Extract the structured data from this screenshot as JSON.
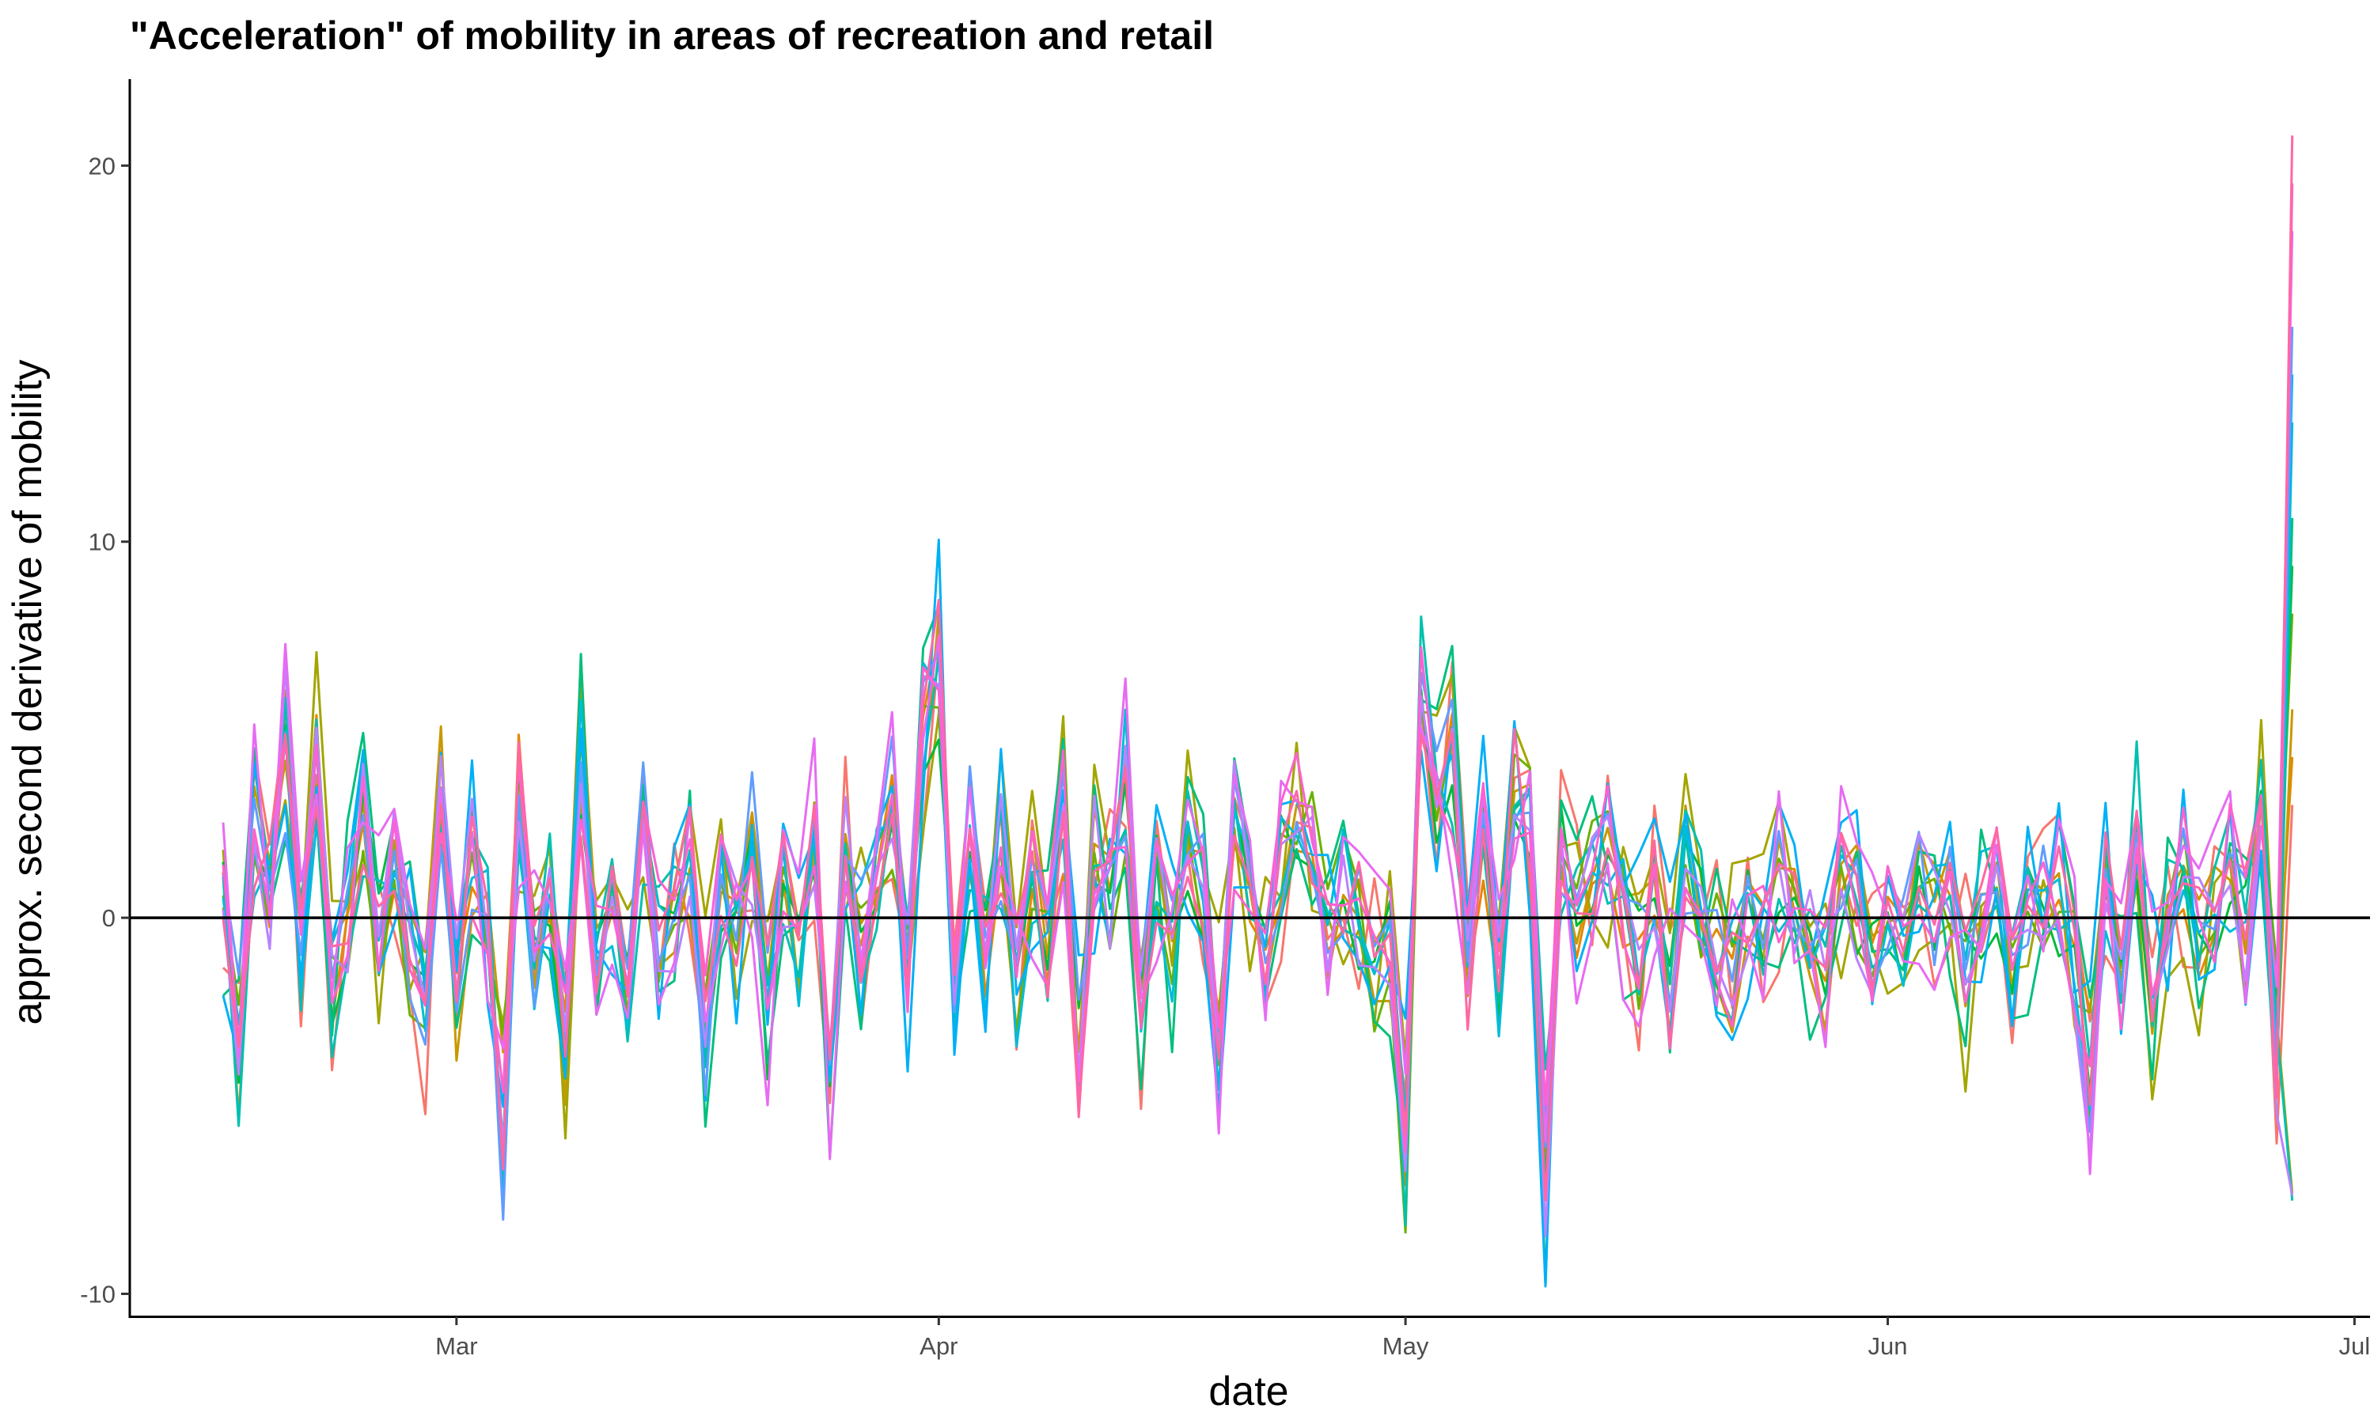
{
  "chart_data": {
    "type": "line",
    "title": "\"Acceleration\" of mobility in areas of recreation and retail",
    "xlabel": "date",
    "ylabel": "approx. second derivative of mobility",
    "x_start": "2020-02-15",
    "x_end": "2020-06-27",
    "xlim": [
      "2020-02-09",
      "2020-07-02"
    ],
    "ylim": [
      -10.6,
      22.3
    ],
    "x_ticks": [
      {
        "date": "2020-03-01",
        "label": "Mar"
      },
      {
        "date": "2020-04-01",
        "label": "Apr"
      },
      {
        "date": "2020-05-01",
        "label": "May"
      },
      {
        "date": "2020-06-01",
        "label": "Jun"
      },
      {
        "date": "2020-07-01",
        "label": "Jul"
      }
    ],
    "y_ticks": [
      -10,
      0,
      10,
      20
    ],
    "reference_line": 0,
    "grid": false,
    "legend": "none",
    "series_colors": [
      "#F8766D",
      "#E58700",
      "#C99800",
      "#A3A500",
      "#6BB100",
      "#00BA38",
      "#00BF7D",
      "#00C0AF",
      "#00BCD8",
      "#00B0F6",
      "#619CFF",
      "#B983FF",
      "#E76BF3",
      "#FD61D1",
      "#FF67A4"
    ],
    "series_count": 15,
    "daily_profile": [
      0.5,
      -3.5,
      2.5,
      0.5,
      5.0,
      -1.0,
      4.5,
      -2.0,
      0.0,
      3.0,
      -0.5,
      2.0,
      -1.0,
      -2.5,
      3.5,
      -2.0,
      1.5,
      0.0,
      -5.5,
      3.0,
      -1.0,
      1.0,
      -3.5,
      4.5,
      -1.0,
      1.0,
      -2.0,
      2.5,
      -0.5,
      0.0,
      1.5,
      -3.0,
      1.0,
      -0.5,
      2.0,
      -2.5,
      1.0,
      -1.0,
      2.5,
      -4.0,
      1.5,
      -0.5,
      1.0,
      3.0,
      -1.5,
      4.5,
      6.5,
      -3.0,
      2.5,
      -1.0,
      2.0,
      -2.0,
      1.5,
      -1.0,
      3.0,
      -3.5,
      2.0,
      0.5,
      3.5,
      -2.5,
      1.0,
      -1.0,
      2.0,
      1.0,
      -3.5,
      2.5,
      0.5,
      -1.0,
      1.5,
      3.0,
      2.0,
      -0.5,
      1.0,
      0.0,
      -1.5,
      -1.0,
      -7.0,
      6.5,
      3.0,
      4.5,
      -1.5,
      3.0,
      -2.0,
      4.0,
      2.5,
      -7.0,
      1.5,
      0.0,
      1.5,
      2.0,
      0.5,
      -1.0,
      1.0,
      -2.0,
      1.5,
      0.5,
      -1.0,
      -1.5,
      0.0,
      -0.5,
      1.0,
      0.5,
      -1.0,
      -1.5,
      1.5,
      0.5,
      -1.5,
      0.0,
      -0.5,
      1.0,
      0.0,
      0.5,
      -2.0,
      0.5,
      1.0,
      -1.5,
      0.0,
      0.5,
      0.5,
      -1.5,
      -4.5,
      1.0,
      -1.5,
      3.0,
      -2.5,
      0.5,
      1.5,
      -0.5,
      0.0,
      1.5,
      -0.5,
      3.0,
      -3.5,
      -2.5,
      1.5,
      -0.5,
      2.5,
      0.0,
      2.0,
      -0.5,
      1.0,
      -1.5,
      1.0,
      1.5,
      -2.5,
      1.5,
      -1.0,
      1.0,
      -0.5,
      -2.0,
      1.0,
      -0.5,
      0.5,
      1.0,
      -2.5,
      0.5,
      4.0,
      -0.5,
      -1.0,
      0.5,
      1.5,
      -2.5,
      14.0
    ],
    "spike_final": {
      "date": "2020-06-27",
      "max": 20.8,
      "min": -9.1
    }
  }
}
